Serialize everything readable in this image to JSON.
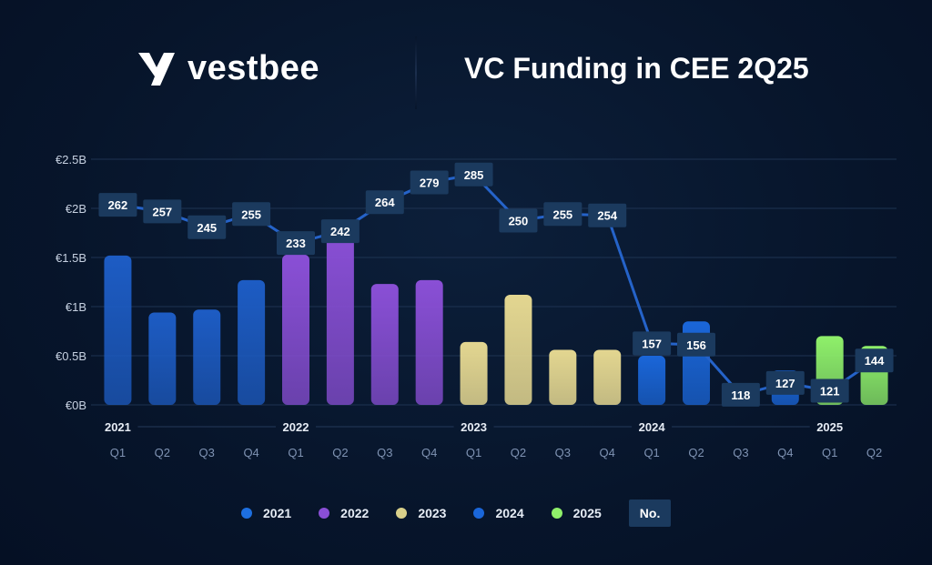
{
  "header": {
    "brand": "vestbee",
    "title": "VC Funding in CEE 2Q25"
  },
  "legend": {
    "items": [
      {
        "label": "2021",
        "color": "#1d6fe0"
      },
      {
        "label": "2022",
        "color": "#8a4fd6"
      },
      {
        "label": "2023",
        "color": "#d9d08a"
      },
      {
        "label": "2024",
        "color": "#1a66d9"
      },
      {
        "label": "2025",
        "color": "#8ff06a"
      }
    ],
    "no_label": "No."
  },
  "chart_data": {
    "type": "bar",
    "title": "VC Funding in CEE 2Q25",
    "y_unit": "€B",
    "ylim": [
      0,
      2.5
    ],
    "y_ticks": [
      "€0B",
      "€0.5B",
      "€1B",
      "€1.5B",
      "€2B",
      "€2.5B"
    ],
    "y_tick_values": [
      0,
      0.5,
      1,
      1.5,
      2,
      2.5
    ],
    "grid": true,
    "categories": [
      "Q1",
      "Q2",
      "Q3",
      "Q4",
      "Q1",
      "Q2",
      "Q3",
      "Q4",
      "Q1",
      "Q2",
      "Q3",
      "Q4",
      "Q1",
      "Q2",
      "Q3",
      "Q4",
      "Q1",
      "Q2"
    ],
    "year_labels": [
      "2021",
      "2022",
      "2023",
      "2024",
      "2025"
    ],
    "year_starts": [
      0,
      4,
      8,
      12,
      16
    ],
    "year_colors": [
      "#1d5cc4",
      "#8a4fd6",
      "#e3d690",
      "#1a66d9",
      "#8ff06a"
    ],
    "values": [
      1.52,
      0.94,
      0.97,
      1.27,
      1.53,
      1.82,
      1.23,
      1.27,
      0.64,
      1.12,
      0.56,
      0.56,
      0.5,
      0.85,
      0.22,
      0.35,
      0.7,
      0.6
    ],
    "deal_counts": [
      262,
      257,
      245,
      255,
      233,
      242,
      264,
      279,
      285,
      250,
      255,
      254,
      157,
      156,
      118,
      127,
      121,
      144
    ],
    "deal_count_axis": [
      0,
      300
    ],
    "legend_position": "bottom"
  }
}
